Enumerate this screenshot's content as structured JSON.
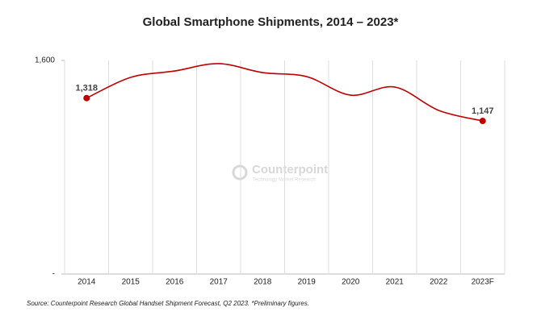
{
  "chart_data": {
    "type": "line",
    "title": "Global Smartphone Shipments, 2014 – 2023*",
    "categories": [
      "2014",
      "2015",
      "2016",
      "2017",
      "2018",
      "2019",
      "2020",
      "2021",
      "2022",
      "2023F"
    ],
    "values": [
      1318,
      1473,
      1521,
      1576,
      1509,
      1479,
      1340,
      1401,
      1226,
      1147
    ],
    "value_labels": [
      "1,318",
      null,
      null,
      null,
      null,
      null,
      null,
      null,
      null,
      "1,147"
    ],
    "color": "#c00000",
    "ylim": [
      0,
      1600
    ],
    "yticks": [
      {
        "value": 0,
        "label": "-"
      },
      {
        "value": 1600,
        "label": "1,600"
      }
    ],
    "watermark": "Counterpoint",
    "watermark_subtitle": "Technology Market Research",
    "source": "Source:  Counterpoint Research Global Handset Shipment Forecast, Q2 2023. *Preliminary figures."
  }
}
